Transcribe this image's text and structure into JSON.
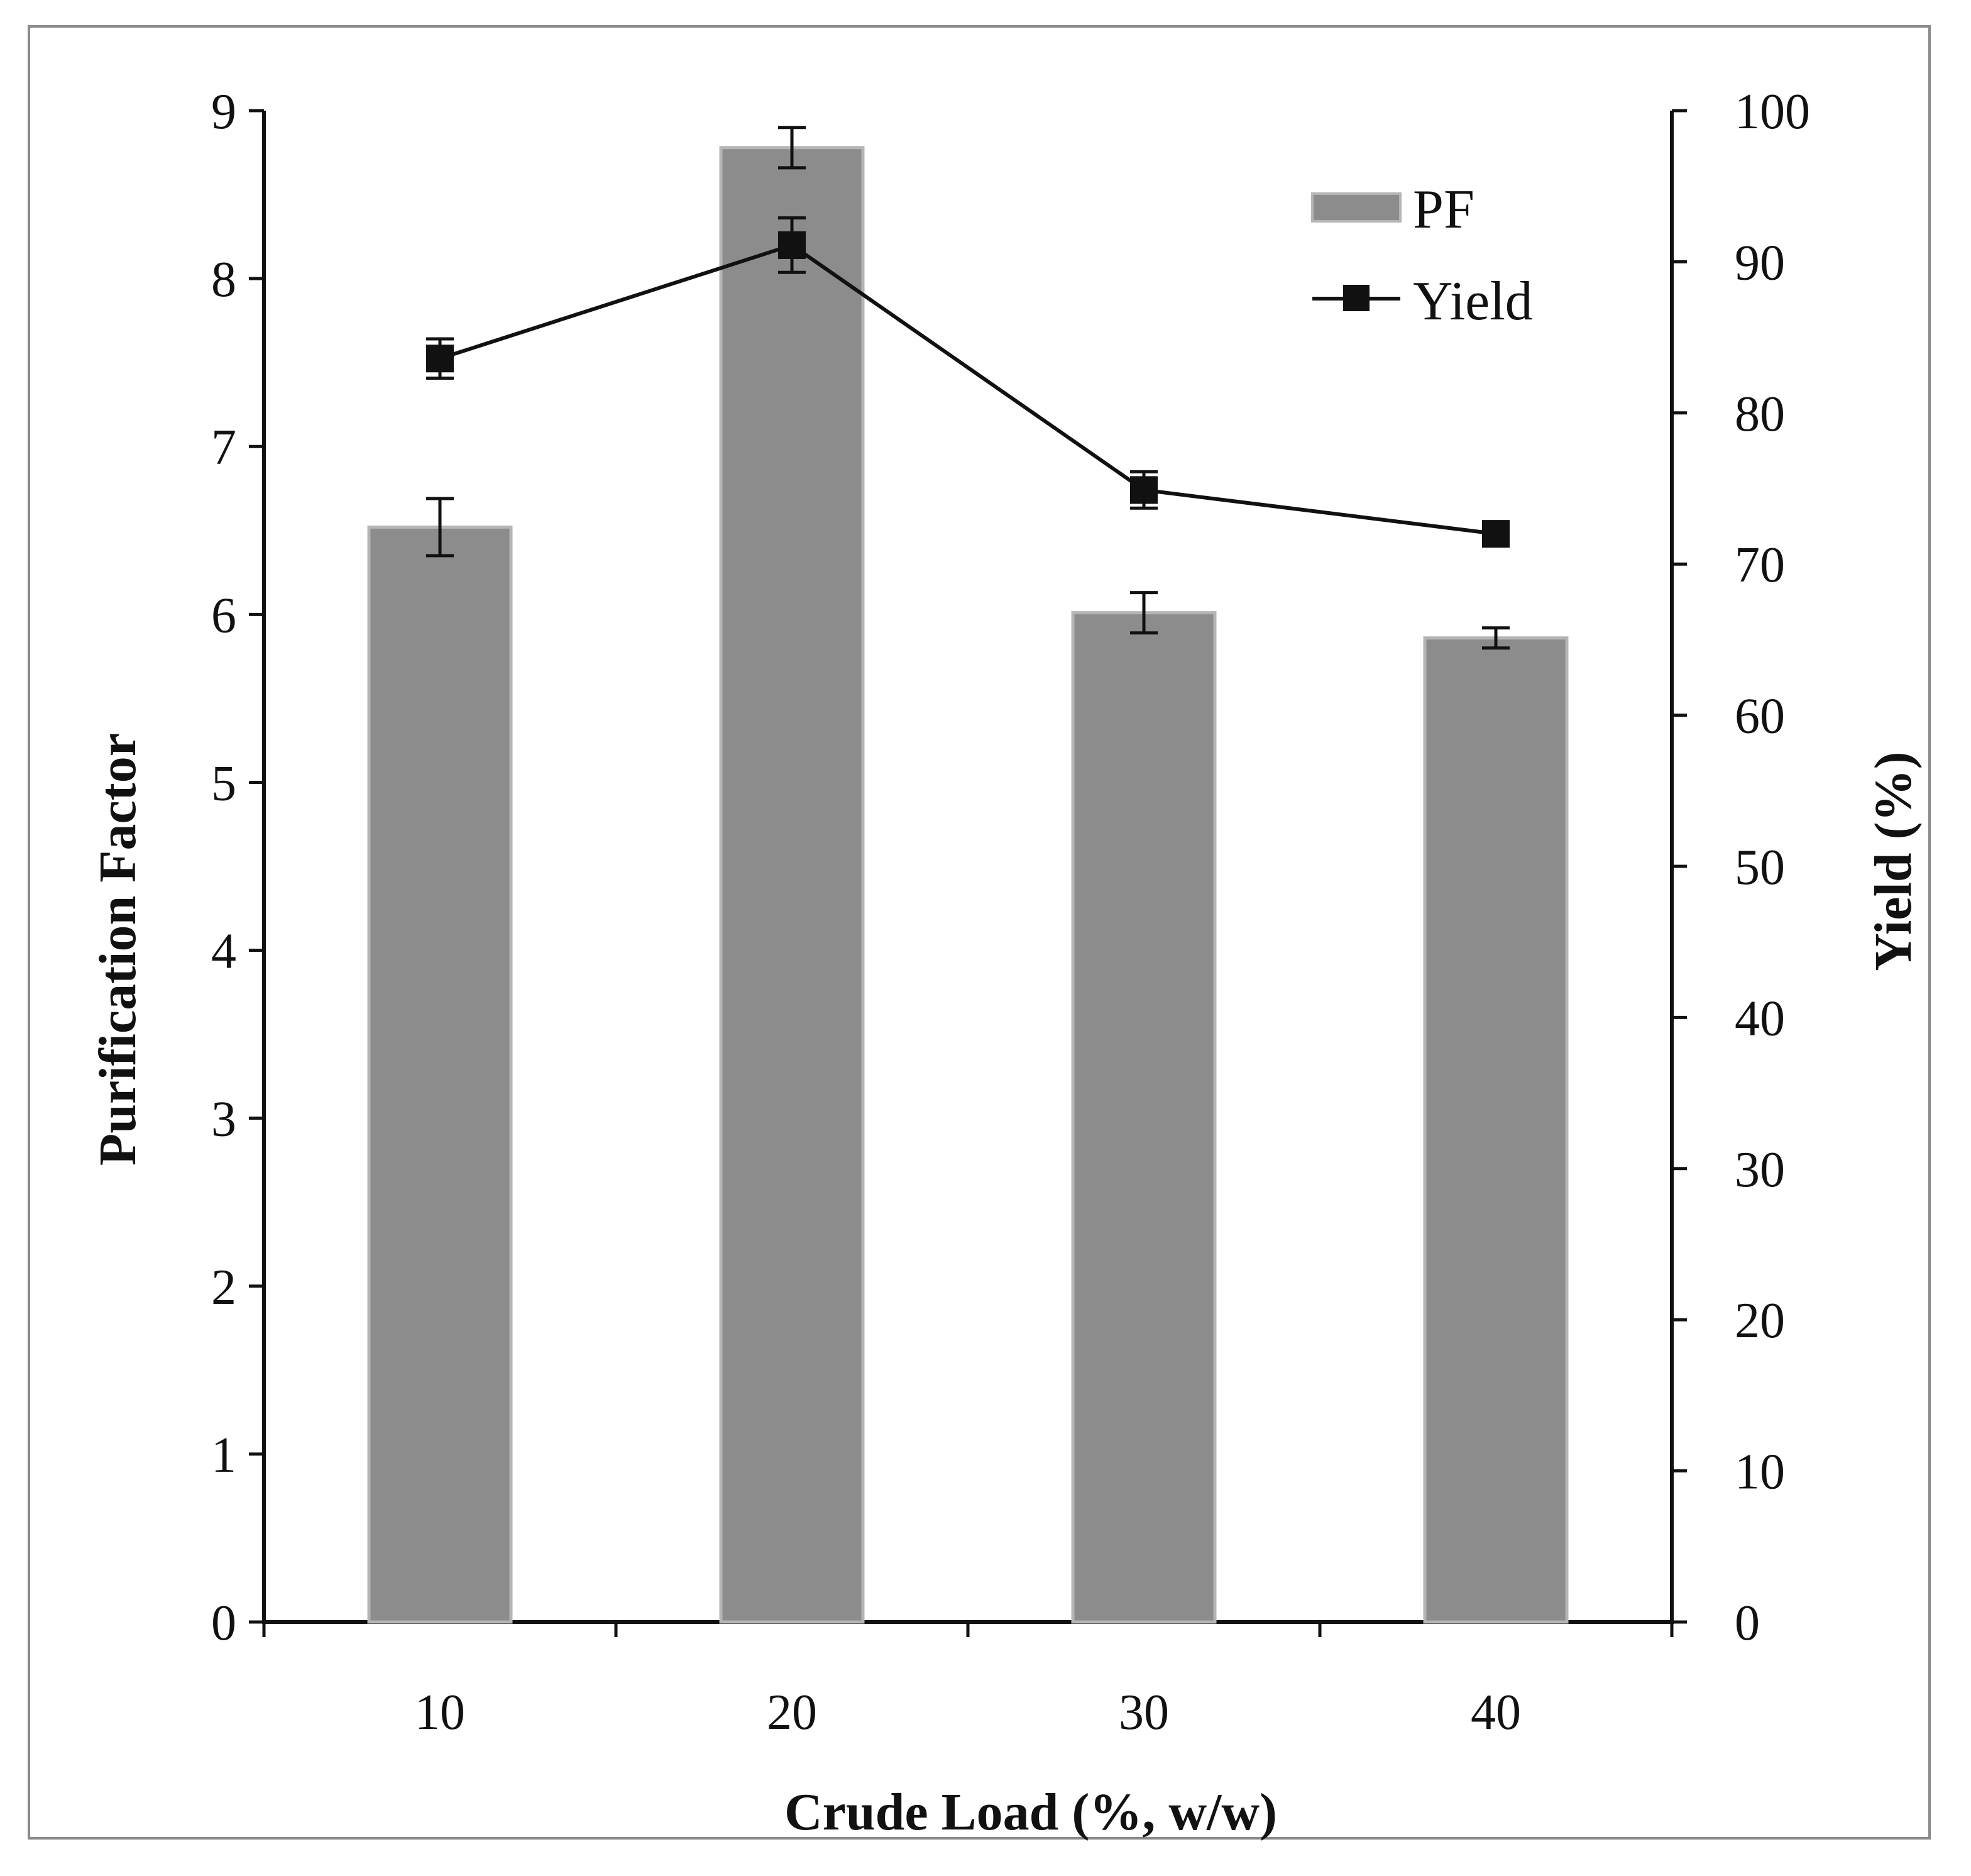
{
  "chart_data": {
    "type": "bar",
    "title": "",
    "categories": [
      "10",
      "20",
      "30",
      "40"
    ],
    "xlabel": "Crude Load (%, w/w)",
    "ylabel": "Purification Factor",
    "y2label": "Yield (%)",
    "ylim": [
      0,
      9
    ],
    "y2lim": [
      0,
      100
    ],
    "yticks": [
      "0",
      "1",
      "2",
      "3",
      "4",
      "5",
      "6",
      "7",
      "8",
      "9"
    ],
    "y2ticks": [
      "0",
      "10",
      "20",
      "30",
      "40",
      "50",
      "60",
      "70",
      "80",
      "90",
      "100"
    ],
    "grid": false,
    "legend_position": "top-right",
    "series": [
      {
        "name": "PF",
        "type": "bar",
        "axis": "left",
        "values": [
          6.52,
          8.78,
          6.01,
          5.86
        ],
        "errors": [
          0.17,
          0.12,
          0.12,
          0.06
        ]
      },
      {
        "name": "Yield",
        "type": "line",
        "axis": "right",
        "values": [
          83.6,
          91.1,
          74.9,
          72.0
        ],
        "errors": [
          1.3,
          1.8,
          1.2,
          0.8
        ]
      }
    ],
    "colors": {
      "bar": "#8c8c8c",
      "bar_edge": "#b5b5b5",
      "line": "#111111",
      "axis": "#111111"
    }
  }
}
